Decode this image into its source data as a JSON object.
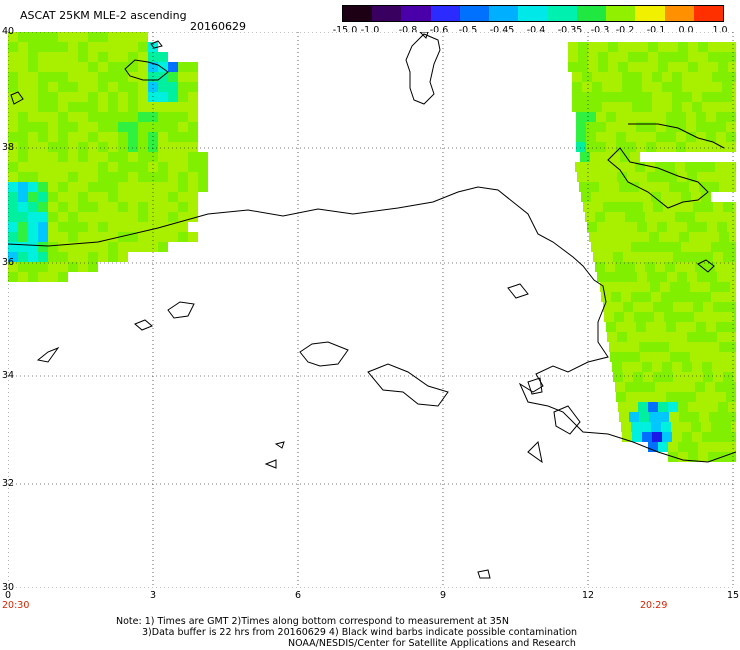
{
  "header": {
    "title": "ASCAT 25KM MLE-2 ascending",
    "date": "20160629"
  },
  "colorbar": {
    "labels": [
      "-15.0",
      "-1.0",
      "-0.8",
      "-0.6",
      "-0.5",
      "-0.45",
      "-0.4",
      "-0.35",
      "-0.3",
      "-0.2",
      "-0.1",
      "0.0",
      "1.0"
    ],
    "colors": [
      "#1e0014",
      "#3a0060",
      "#4a00a8",
      "#2b2bff",
      "#0070ff",
      "#00b0ff",
      "#00e8e8",
      "#00f0b0",
      "#20e840",
      "#90f000",
      "#f0f000",
      "#ff9000",
      "#ff3000"
    ]
  },
  "axes": {
    "lat_labels": [
      "40",
      "38",
      "36",
      "34",
      "32",
      "30"
    ],
    "lon_labels": [
      "0",
      "3",
      "6",
      "9",
      "12",
      "15"
    ],
    "start_time": "20:30",
    "end_time": "20:29"
  },
  "notes": [
    "Note: 1) Times are GMT 2)Times along bottom correspond to measurement at 35N",
    "3)Data buffer is 22 hrs from 20160629 4) Black wind barbs indicate possible contamination",
    "NOAA/NESDIS/Center for Satellite Applications and Research"
  ]
}
